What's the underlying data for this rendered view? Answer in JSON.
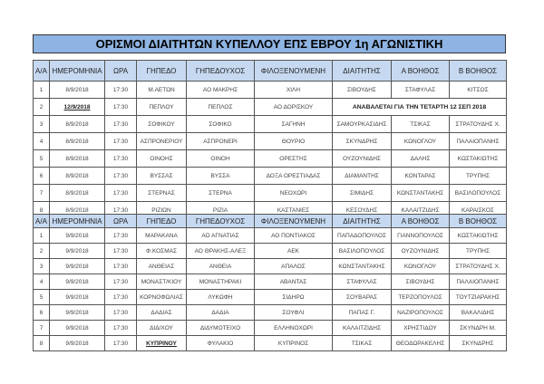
{
  "title": "ΟΡΙΣΜΟΙ  ΔΙΑΙΤΗΤΩΝ  ΚΥΠΕΛΛΟΥ ΕΠΣ ΕΒΡΟΥ  1η ΑΓΩΝΙΣΤΙΚΗ",
  "headers": [
    "Α/Α",
    "ΗΜΕΡΟΜΗΝΙΑ",
    "ΩΡΑ",
    "ΓΗΠΕΔΟ",
    "ΓΗΠΕΔΟΥΧΟΣ",
    "ΦΙΛΟΞΕΝΟΥΜΕΝΗ",
    "ΔΙΑΙΤΗΤΗΣ",
    "Α ΒΟΗΘΟΣ",
    "Β ΒΟΗΘΟΣ"
  ],
  "table1": [
    [
      "1",
      "8/9/2018",
      "17:30",
      "Μ.ΑΕΤΩΝ",
      "ΑΟ ΜΑΚΡΗΣ",
      "ΧΙΛΗ",
      "ΣΙΒΟΥΔΗΣ",
      "ΣΤΑΦΥΛΑΣ",
      "ΚΙΤΣΟΣ"
    ],
    [
      "2",
      "12/9/2018",
      "17:30",
      "ΠΕΠΛΟΥ",
      "ΠΕΠΛΟΣ",
      "ΑΟ ΔΟΡΙΣΚΟΥ",
      "ΑΝΑΒΑΛΕΤΑΙ ΓΙΑ ΤΗΝ ΤΕΤΑΡΤΗ 12 ΣΕΠ 2018"
    ],
    [
      "3",
      "8/9/2018",
      "17:30",
      "ΣΟΦΙΚΟΥ",
      "ΣΟΦΙΚΟ",
      "ΣΑΓΗΝΗ",
      "ΣΑΜΟΥΡΚΑΣΙΔΗΣ",
      "ΤΣΙΚΑΣ",
      "ΣΤΡΑΤΟΥΔΗΣ Χ."
    ],
    [
      "4",
      "8/9/2018",
      "17:30",
      "ΑΣΠΡΟΝΕΡΙΟΥ",
      "ΑΣΠΡΟΝΕΡΙ",
      "ΘΟΥΡΙΟ",
      "ΣΚΥΝΔΡΗΣ",
      "ΚΩΝΟΓΛΟΥ",
      "ΠΑΛΑΙΟΠΑΝΗΣ"
    ],
    [
      "5",
      "8/9/2018",
      "17:30",
      "ΟΙΝΟΗΣ",
      "ΟΙΝΟΗ",
      "ΟΡΕΣΤΗΣ",
      "ΟΥΖΟΥΝΙΔΗΣ",
      "ΔΑΛΗΣ",
      "ΚΩΣΤΑΚΙΩΤΗΣ"
    ],
    [
      "6",
      "8/9/2018",
      "17:30",
      "ΒΥΣΣΑΣ",
      "ΒΥΣΣΑ",
      "ΔΟΞΑ ΟΡΕΣΤΙΑΔΑΣ",
      "ΔΙΑΜΑΝΤΗΣ",
      "ΚΟΝΤΑΡΑΣ",
      "ΤΡΥΠΗΣ"
    ],
    [
      "7",
      "8/9/2018",
      "17:30",
      "ΣΤΕΡΝΑΣ",
      "ΣΤΕΡΝΑ",
      "ΝΕΟΧΩΡΙ",
      "ΣΙΜΙΔΗΣ",
      "ΚΩΝΣΤΑΝΤΑΚΗΣ",
      "ΒΑΣΙΛΟΠΟΥΛΟΣ"
    ],
    [
      "8",
      "8/9/2018",
      "17:30",
      "ΡΙΖΙΩΝ",
      "ΡΙΖΙΑ",
      "ΚΑΣΤΑΝΙΕΣ",
      "ΚΕΣΟΥΔΗΣ",
      "ΚΑΛΑΙΤΖΙΔΗΣ",
      "ΚΑΡΑΙΣΚΟΣ"
    ]
  ],
  "table2": [
    [
      "1",
      "9/9/2018",
      "17:30",
      "ΜΑΡΑΚΑΝΑ",
      "ΑΟ ΑΓΝΑΤΙΑΣ",
      "ΑΟ ΠΟΝΤΙΑΚΟΣ",
      "ΠΑΠΑΔΟΠΟΥΛΟΣ",
      "ΓΙΑΝΝΟΠΟΥΛΟΣ",
      "ΚΩΣΤΑΚΙΩΤΗΣ"
    ],
    [
      "2",
      "9/9/2018",
      "17:30",
      "Φ.ΚΟΣΜΑΣ",
      "ΑΟ ΘΡΑΚΗΣ-ΑΛΕΞ",
      "ΑΕΚ",
      "ΒΑΣΙΛΟΠΟΥΛΟΣ",
      "ΟΥΖΟΥΝΙΔΗΣ",
      "ΤΡΥΠΗΣ"
    ],
    [
      "3",
      "9/9/2018",
      "17:30",
      "ΑΝΘΕΙΑΣ",
      "ΑΝΘΕΙΑ",
      "ΑΠΑΛΟΣ",
      "ΚΩΝΣΤΑΝΤΑΚΗΣ",
      "ΚΩΝΟΓΛΟΥ",
      "ΣΤΡΑΤΟΥΔΗΣ Χ."
    ],
    [
      "4",
      "9/9/2018",
      "17:30",
      "ΜΟΝΑΣΤ/ΚΙΟΥ",
      "ΜΟΝΑΣΤΗΡΑΚΙ",
      "ΑΒΑΝΤΑΣ",
      "ΣΤΑΦΥΛΑΣ",
      "ΣΙΒΟΥΔΗΣ",
      "ΠΑΛΑΙΟΠΑΝΗΣ"
    ],
    [
      "5",
      "9/9/2018",
      "17:30",
      "ΚΟΡΝΟΦΩΛΙΑΣ",
      "ΛΥΚΩΦΗ",
      "ΣΙΔΗΡΩ",
      "ΣΟΥΒΑΡΑΣ",
      "ΤΕΡΖΟΠΟΥΛΟΣ",
      "ΤΟΥΤΖΙΑΡΑΚΗΣ"
    ],
    [
      "6",
      "9/9/2018",
      "17:30",
      "ΔΑΔΙΑΣ",
      "ΔΑΔΙΑ",
      "ΣΟΥΦΛΙ",
      "ΠΑΠΑΣ Γ.",
      "ΝΑΖΙΡΟΠΟΥΛΟΣ",
      "ΒΑΚΑΛΙΔΗΣ"
    ],
    [
      "7",
      "9/9/2018",
      "17:30",
      "ΔΙΔ/ΧΟΥ",
      "ΔΙΔΥΜΟΤΕΙΧΟ",
      "ΕΛΛΗΝΟΧΩΡΙ",
      "ΚΑΛΑΙΤΖΙΔΗΣ",
      "ΧΡΗΣΤΙΔΟΥ",
      "ΣΚΥΝΔΡΗ Μ."
    ],
    [
      "8",
      "9/9/2018",
      "17:30",
      "ΚΥΠΡΙΝΟΥ",
      "ΦΥΛΑΚΙΟ",
      "ΚΥΠΡΙΝΟΣ",
      "ΤΣΙΚΑΣ",
      "ΘΕΟΔΩΡΑΚΕΛΗΣ",
      "ΣΚΥΝΔΡΗΣ"
    ]
  ]
}
